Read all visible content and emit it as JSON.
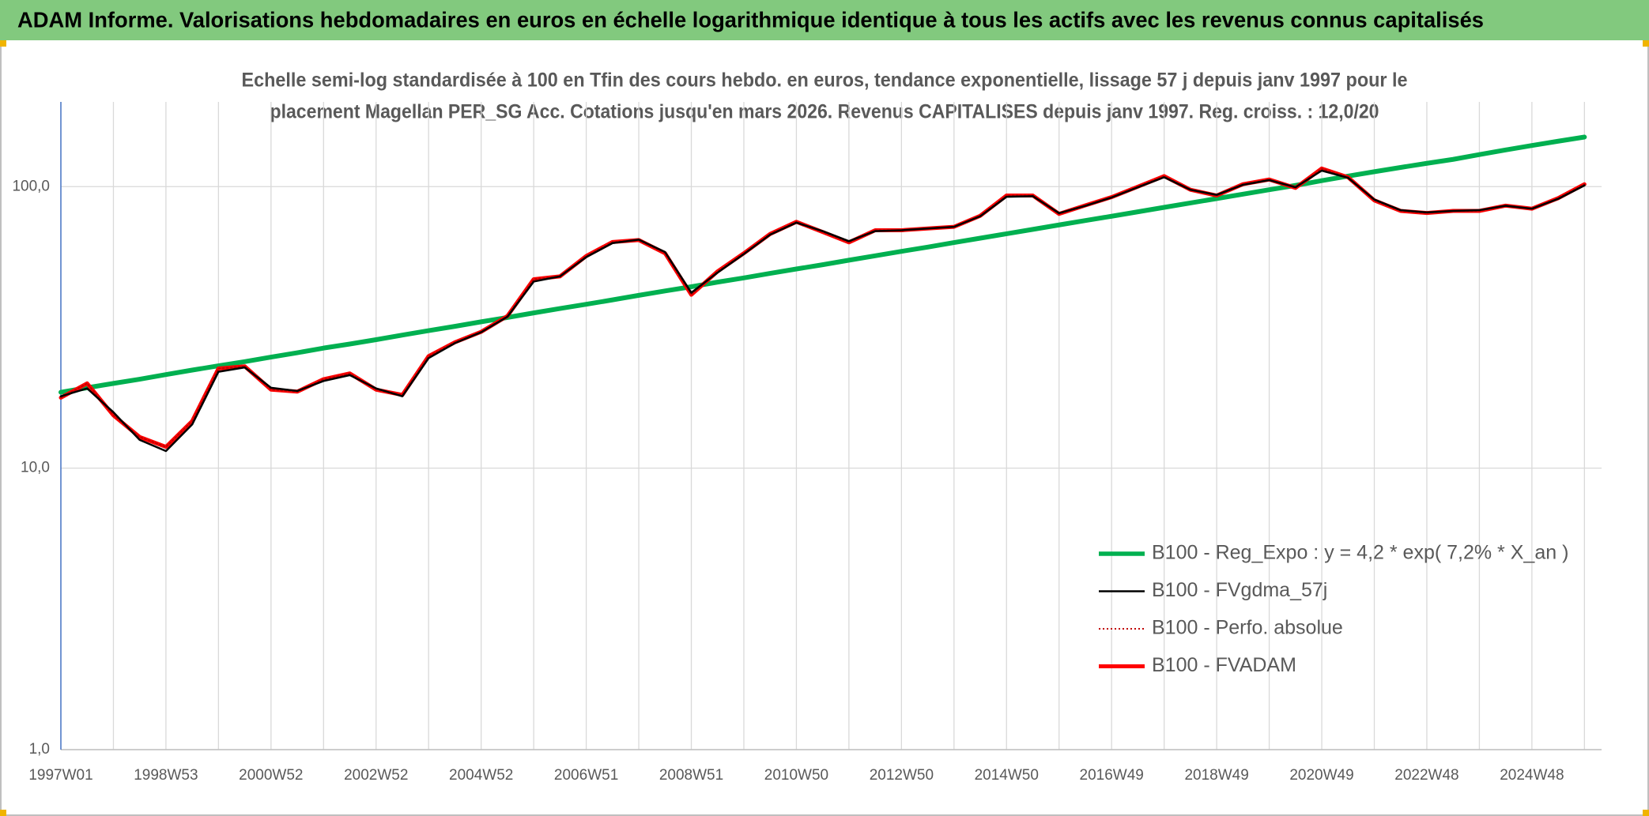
{
  "chart_data": {
    "type": "line",
    "title": "ADAM Informe. Valorisations hebdomadaires en euros en échelle logarithmique identique à tous les actifs avec les revenus connus capitalisés",
    "subtitle": [
      "Echelle semi-log standardisée à 100 en Tfin des cours hebdo. en euros, tendance exponentielle, lissage 57 j depuis janv 1997 pour le",
      "placement Magellan PER_SG Acc. Cotations jusqu'en mars 2026. Revenus CAPITALISES depuis janv 1997. Reg. croiss. : 12,0/20"
    ],
    "log_scale": true,
    "grid": true,
    "legend": "lower right",
    "ylim": [
      1,
      200
    ],
    "yticks": [
      {
        "value": 1,
        "label": "1,0"
      },
      {
        "value": 10,
        "label": "10,0"
      },
      {
        "value": 100,
        "label": "100,0"
      }
    ],
    "categories": [
      "1997W01",
      null,
      null,
      null,
      "1998W53",
      null,
      null,
      null,
      "2000W52",
      null,
      null,
      null,
      "2002W52",
      null,
      null,
      null,
      "2004W52",
      null,
      null,
      null,
      "2006W51",
      null,
      null,
      null,
      "2008W51",
      null,
      null,
      null,
      "2010W50",
      null,
      null,
      null,
      "2012W50",
      null,
      null,
      null,
      "2014W50",
      null,
      null,
      null,
      "2016W49",
      null,
      null,
      null,
      "2018W49",
      null,
      null,
      null,
      "2020W49",
      null,
      null,
      null,
      "2022W48",
      null,
      null,
      null,
      "2024W48",
      null,
      null
    ],
    "series": [
      {
        "name": "B100 - Reg_Expo : y = 4,2 * exp( 7,2% *  X_an )",
        "color": "#00b050",
        "line_style": "solid",
        "width": 6,
        "values": [
          18.6,
          19.3,
          20.0,
          20.7,
          21.5,
          22.3,
          23.1,
          23.9,
          24.8,
          25.7,
          26.7,
          27.6,
          28.6,
          29.7,
          30.8,
          31.9,
          33.1,
          34.3,
          35.6,
          36.9,
          38.2,
          39.6,
          41.1,
          42.6,
          44.1,
          45.8,
          47.4,
          49.2,
          51.0,
          52.8,
          54.8,
          56.8,
          58.9,
          61.0,
          63.3,
          65.6,
          68.0,
          70.5,
          73.1,
          75.8,
          78.5,
          81.4,
          84.4,
          87.5,
          90.7,
          94.0,
          97.5,
          101,
          105,
          109,
          113,
          117,
          121,
          125,
          130,
          135,
          140,
          145,
          150
        ]
      },
      {
        "name": "B100 - FVgdma_57j",
        "color": "#000000",
        "line_style": "solid",
        "width": 2.5,
        "values": [
          18.0,
          19.2,
          15.8,
          12.6,
          11.5,
          14.3,
          22.0,
          22.8,
          19.3,
          18.8,
          20.4,
          21.4,
          19.2,
          18.0,
          24.6,
          27.8,
          30.4,
          34.5,
          46.0,
          48.0,
          56.2,
          63.0,
          64.8,
          58.6,
          42.0,
          49.5,
          57.6,
          67.5,
          74.5,
          69.5,
          64.0,
          69.5,
          70.0,
          71.0,
          72.0,
          78.5,
          92.0,
          92.5,
          80.5,
          85.5,
          91.5,
          99.5,
          108,
          97.5,
          93.5,
          101.5,
          105.5,
          99.5,
          114,
          107.5,
          90.0,
          82.5,
          81.0,
          82.0,
          82.5,
          85.5,
          83.5,
          90.5,
          101
        ]
      },
      {
        "name": "B100 - Perfo. absolue",
        "color": "#c00000",
        "line_style": "dotted",
        "width": 2,
        "values": [
          17.8,
          20.0,
          15.4,
          12.9,
          11.9,
          14.7,
          22.6,
          23.0,
          19.0,
          18.7,
          20.7,
          21.7,
          19.0,
          18.2,
          25.0,
          28.0,
          30.5,
          34.7,
          46.9,
          48.0,
          56.7,
          63.6,
          64.6,
          58.0,
          41.3,
          50.0,
          58.0,
          67.9,
          75.0,
          69.0,
          63.4,
          70.0,
          70.0,
          71.0,
          72.0,
          78.8,
          93.0,
          93.0,
          80.0,
          85.8,
          91.8,
          100,
          109,
          97.5,
          93.0,
          102,
          106,
          99.0,
          116,
          108,
          89.4,
          82.0,
          80.6,
          82.0,
          82.0,
          85.6,
          83.5,
          91.0,
          102
        ]
      },
      {
        "name": "B100 - FVADAM",
        "color": "#ff0000",
        "line_style": "solid",
        "width": 5,
        "values": [
          17.8,
          20.0,
          15.4,
          12.9,
          11.9,
          14.7,
          22.6,
          23.0,
          19.0,
          18.7,
          20.7,
          21.7,
          19.0,
          18.2,
          25.0,
          28.0,
          30.5,
          34.7,
          46.9,
          48.0,
          56.7,
          63.6,
          64.6,
          58.0,
          41.3,
          50.0,
          58.0,
          67.9,
          75.0,
          69.0,
          63.4,
          70.0,
          70.0,
          71.0,
          72.0,
          78.8,
          93.0,
          93.0,
          80.0,
          85.8,
          91.8,
          100,
          109,
          97.5,
          93.0,
          102,
          106,
          99.0,
          116,
          108,
          89.4,
          82.0,
          80.6,
          82.0,
          82.0,
          85.6,
          83.5,
          91.0,
          102
        ]
      }
    ]
  }
}
